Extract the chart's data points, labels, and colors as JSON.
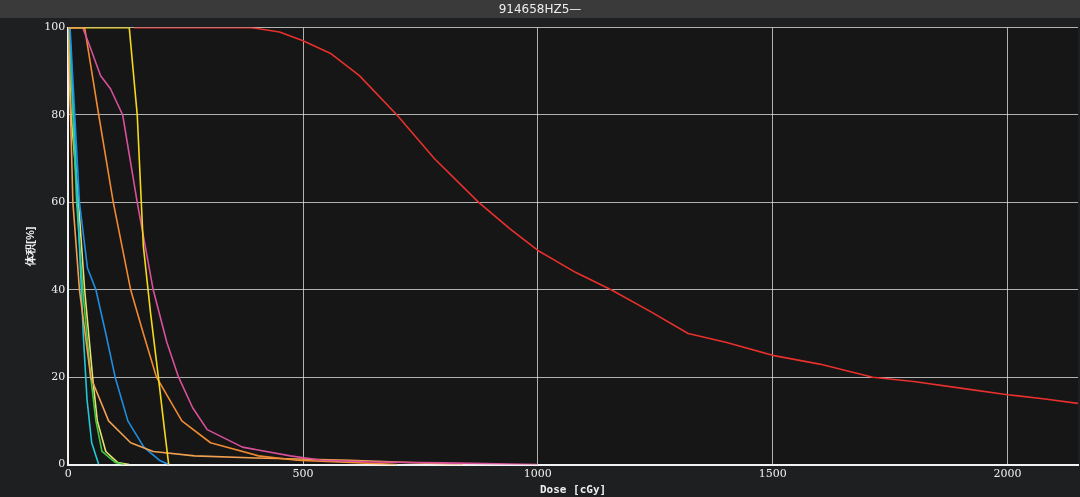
{
  "chart_data": {
    "type": "line",
    "title": "914658HZ5—",
    "xlabel": "Dose [cGy]",
    "ylabel": "体积[%]",
    "xlim": [
      0,
      2150
    ],
    "xticks": [
      0,
      500,
      1000,
      1500,
      2000
    ],
    "ylim": [
      0,
      100
    ],
    "yticks": [
      0,
      20,
      40,
      60,
      80,
      100
    ],
    "grid": true,
    "legend": false,
    "marker": "none",
    "line_style": "solid",
    "series": [
      {
        "color": "#e8302c",
        "x": [
          140,
          200,
          390,
          450,
          500,
          560,
          620,
          700,
          780,
          874,
          940,
          1000,
          1080,
          1156,
          1240,
          1320,
          1400,
          1500,
          1600,
          1713,
          1800,
          1900,
          2000,
          2080,
          2150
        ],
        "values": [
          100,
          100,
          100,
          99,
          97,
          94,
          89,
          80,
          70,
          60,
          54,
          49,
          44,
          40,
          35,
          30,
          28,
          25,
          23,
          20,
          19,
          17.5,
          16,
          15,
          14
        ]
      },
      {
        "color": "#f4d81c",
        "x": [
          0,
          130,
          147,
          160,
          175,
          192,
          205,
          214
        ],
        "values": [
          100,
          100,
          80,
          50,
          35,
          20,
          8,
          0
        ]
      },
      {
        "color": "#d8509a",
        "x": [
          0,
          31,
          45,
          69,
          90,
          116,
          147,
          181,
          210,
          235,
          265,
          296,
          371,
          473,
          540,
          650,
          800,
          1000
        ],
        "values": [
          100,
          100,
          96,
          89,
          86,
          80,
          60,
          40,
          28,
          20,
          13,
          8,
          4,
          2,
          1,
          0.6,
          0.4,
          0
        ]
      },
      {
        "color": "#f08a30",
        "x": [
          0,
          35,
          65,
          96,
          133,
          160,
          188,
          242,
          303,
          405,
          487,
          600,
          700
        ],
        "values": [
          100,
          100,
          80,
          60,
          40,
          30,
          20,
          10,
          5,
          2,
          1,
          0.5,
          0
        ]
      },
      {
        "color": "#f0a050",
        "x": [
          0,
          5,
          10,
          24,
          48,
          86,
          133,
          181,
          269,
          400,
          600,
          840
        ],
        "values": [
          100,
          80,
          60,
          40,
          20,
          10,
          5,
          3,
          2,
          1.5,
          1,
          0
        ]
      },
      {
        "color": "#1e8ee0",
        "x": [
          0,
          4,
          14,
          24,
          41,
          59,
          80,
          100,
          127,
          161,
          194,
          214
        ],
        "values": [
          100,
          100,
          80,
          60,
          45,
          40,
          30,
          20,
          10,
          4,
          1,
          0
        ]
      },
      {
        "color": "#20c8d8",
        "x": [
          0,
          3,
          12,
          20,
          26,
          32,
          40,
          50,
          65
        ],
        "values": [
          100,
          100,
          80,
          60,
          45,
          30,
          15,
          5,
          0
        ]
      },
      {
        "color": "#40c840",
        "x": [
          0,
          2,
          10,
          18,
          31,
          48,
          59,
          72,
          100,
          120
        ],
        "values": [
          100,
          100,
          80,
          60,
          40,
          20,
          10,
          3,
          0.5,
          0
        ]
      },
      {
        "color": "#e8e070",
        "x": [
          0,
          6,
          22,
          35,
          52,
          62,
          80,
          105,
          130
        ],
        "values": [
          100,
          80,
          60,
          40,
          20,
          10,
          3,
          0.5,
          0
        ]
      }
    ]
  }
}
